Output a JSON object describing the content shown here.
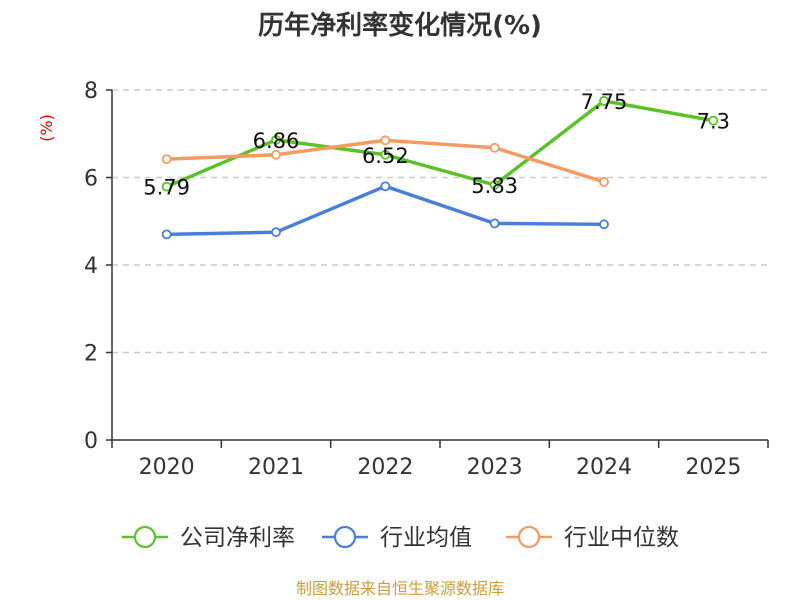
{
  "chart_data": {
    "type": "line",
    "title": "历年净利率变化情况(%)",
    "unit_label": "(%)",
    "categories": [
      "2020",
      "2021",
      "2022",
      "2023",
      "2024",
      "2025"
    ],
    "ylim": [
      0,
      8
    ],
    "y_ticks": [
      0,
      2,
      4,
      6,
      8
    ],
    "y_tick_labels": [
      "0",
      "2",
      "4",
      "6",
      "8"
    ],
    "grid": true,
    "legend_position": "bottom",
    "series": [
      {
        "name": "公司净利率",
        "color": "#5cc12a",
        "values": [
          5.79,
          6.86,
          6.52,
          5.83,
          7.75,
          7.3
        ],
        "data_labels": [
          "5.79",
          "6.86",
          "6.52",
          "5.83",
          "7.75",
          "7.3"
        ]
      },
      {
        "name": "行业均值",
        "color": "#4a7fd8",
        "values": [
          4.7,
          4.75,
          5.8,
          4.95,
          4.93,
          null
        ]
      },
      {
        "name": "行业中位数",
        "color": "#f59a62",
        "values": [
          6.42,
          6.52,
          6.85,
          6.68,
          5.9,
          null
        ]
      }
    ],
    "source": "制图数据来自恒生聚源数据库"
  }
}
